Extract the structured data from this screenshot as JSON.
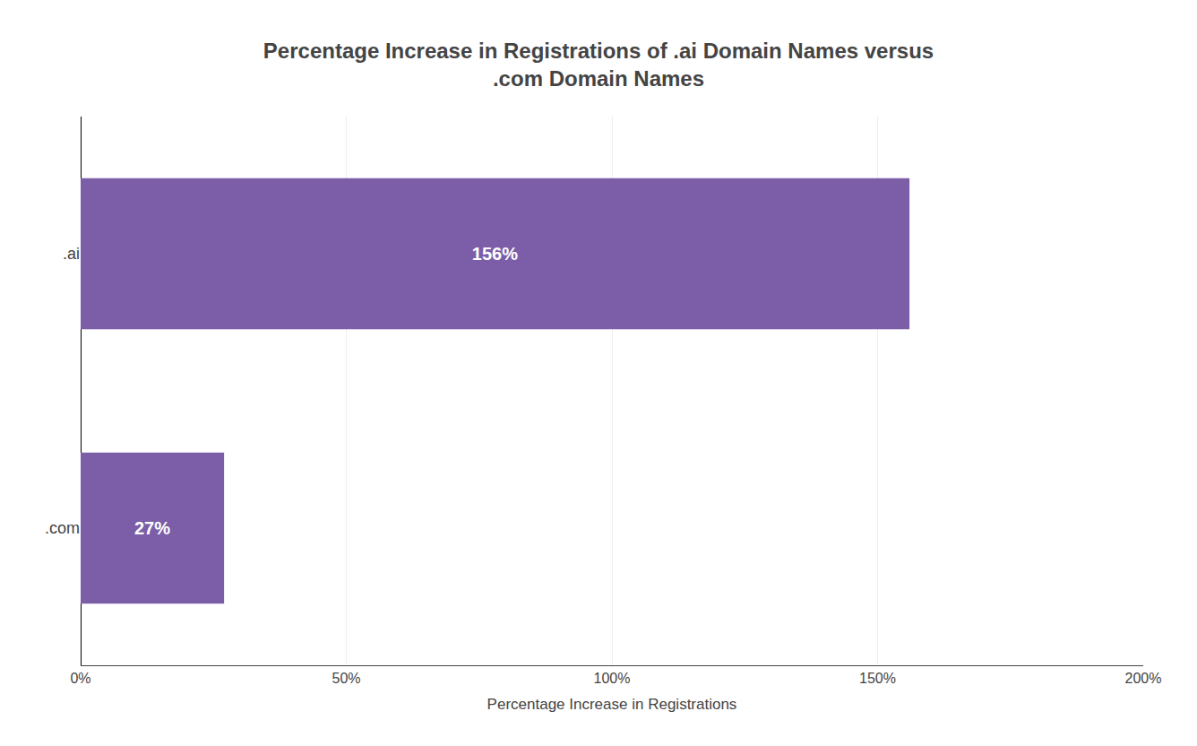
{
  "chart_data": {
    "type": "bar",
    "orientation": "horizontal",
    "title": "Percentage Increase in Registrations of .ai Domain Names versus\n.com Domain Names",
    "xlabel": "Percentage Increase in Registrations",
    "categories": [
      ".com",
      ".ai"
    ],
    "values": [
      27,
      156
    ],
    "value_labels": [
      "27%",
      "156%"
    ],
    "data_labels": true,
    "color": "#7B5EA7",
    "xlim": [
      0,
      200
    ],
    "xticks": [
      {
        "value": 0,
        "label": "0%"
      },
      {
        "value": 50,
        "label": "50%"
      },
      {
        "value": 100,
        "label": "100%"
      },
      {
        "value": 150,
        "label": "150%"
      },
      {
        "value": 200,
        "label": "200%"
      }
    ],
    "grid": true
  }
}
